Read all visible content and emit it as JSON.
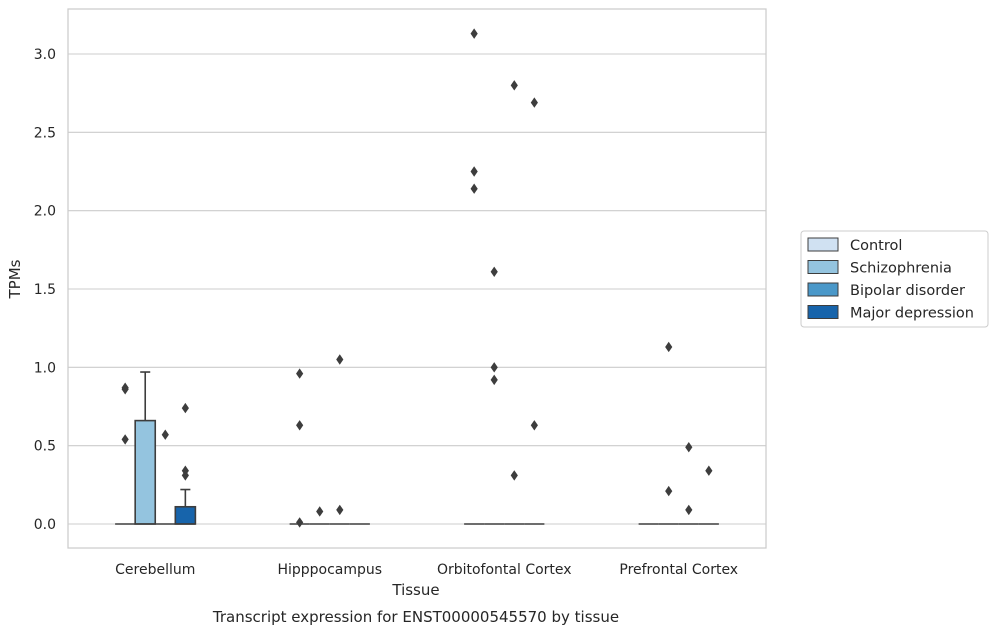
{
  "chart_data": {
    "type": "box",
    "title": "",
    "caption": "Transcript expression for ENST00000545570 by tissue",
    "xlabel": "Tissue",
    "ylabel": "TPMs",
    "ylim": [
      -0.15,
      3.3
    ],
    "yticks": [
      "0.0",
      "0.5",
      "1.0",
      "1.5",
      "2.0",
      "2.5",
      "3.0"
    ],
    "ytick_values": [
      0.0,
      0.5,
      1.0,
      1.5,
      2.0,
      2.5,
      3.0
    ],
    "grid": "horizontal",
    "legend_position": "right",
    "categories": [
      "Cerebellum",
      "Hipppocampus",
      "Orbitofontal Cortex",
      "Prefrontal Cortex"
    ],
    "series": [
      {
        "name": "Control",
        "color": "#d0e1f2",
        "boxes": [
          {
            "q1": 0.0,
            "median": 0.0,
            "q3": 0.0,
            "whisker_low": 0.0,
            "whisker_high": 0.0,
            "outliers": [
              0.54,
              0.86,
              0.87
            ]
          },
          {
            "q1": 0.0,
            "median": 0.0,
            "q3": 0.0,
            "whisker_low": 0.0,
            "whisker_high": 0.0,
            "outliers": [
              0.01,
              0.63,
              0.96
            ]
          },
          {
            "q1": 0.0,
            "median": 0.0,
            "q3": 0.0,
            "whisker_low": 0.0,
            "whisker_high": 0.0,
            "outliers": [
              2.14,
              2.25,
              3.13
            ]
          },
          {
            "q1": 0.0,
            "median": 0.0,
            "q3": 0.0,
            "whisker_low": 0.0,
            "whisker_high": 0.0,
            "outliers": []
          }
        ]
      },
      {
        "name": "Schizophrenia",
        "color": "#94c4df",
        "boxes": [
          {
            "q1": 0.0,
            "median": 0.0,
            "q3": 0.66,
            "whisker_low": 0.0,
            "whisker_high": 0.97,
            "outliers": []
          },
          {
            "q1": 0.0,
            "median": 0.0,
            "q3": 0.0,
            "whisker_low": 0.0,
            "whisker_high": 0.0,
            "outliers": [
              0.08
            ]
          },
          {
            "q1": 0.0,
            "median": 0.0,
            "q3": 0.0,
            "whisker_low": 0.0,
            "whisker_high": 0.0,
            "outliers": [
              0.92,
              1.0,
              1.61
            ]
          },
          {
            "q1": 0.0,
            "median": 0.0,
            "q3": 0.0,
            "whisker_low": 0.0,
            "whisker_high": 0.0,
            "outliers": [
              0.21,
              1.13
            ]
          }
        ]
      },
      {
        "name": "Bipolar disorder",
        "color": "#4a98c9",
        "boxes": [
          {
            "q1": 0.0,
            "median": 0.0,
            "q3": 0.0,
            "whisker_low": 0.0,
            "whisker_high": 0.0,
            "outliers": [
              0.57
            ]
          },
          {
            "q1": 0.0,
            "median": 0.0,
            "q3": 0.0,
            "whisker_low": 0.0,
            "whisker_high": 0.0,
            "outliers": [
              0.09,
              1.05
            ]
          },
          {
            "q1": 0.0,
            "median": 0.0,
            "q3": 0.0,
            "whisker_low": 0.0,
            "whisker_high": 0.0,
            "outliers": [
              0.31,
              2.8
            ]
          },
          {
            "q1": 0.0,
            "median": 0.0,
            "q3": 0.0,
            "whisker_low": 0.0,
            "whisker_high": 0.0,
            "outliers": [
              0.49,
              0.09
            ]
          }
        ]
      },
      {
        "name": "Major depression",
        "color": "#1764ab",
        "boxes": [
          {
            "q1": 0.0,
            "median": 0.0,
            "q3": 0.11,
            "whisker_low": 0.0,
            "whisker_high": 0.22,
            "outliers": [
              0.31,
              0.34,
              0.74
            ]
          },
          {
            "q1": 0.0,
            "median": 0.0,
            "q3": 0.0,
            "whisker_low": 0.0,
            "whisker_high": 0.0,
            "outliers": []
          },
          {
            "q1": 0.0,
            "median": 0.0,
            "q3": 0.0,
            "whisker_low": 0.0,
            "whisker_high": 0.0,
            "outliers": [
              0.63,
              2.69
            ]
          },
          {
            "q1": 0.0,
            "median": 0.0,
            "q3": 0.0,
            "whisker_low": 0.0,
            "whisker_high": 0.0,
            "outliers": [
              0.34
            ]
          }
        ]
      }
    ]
  }
}
